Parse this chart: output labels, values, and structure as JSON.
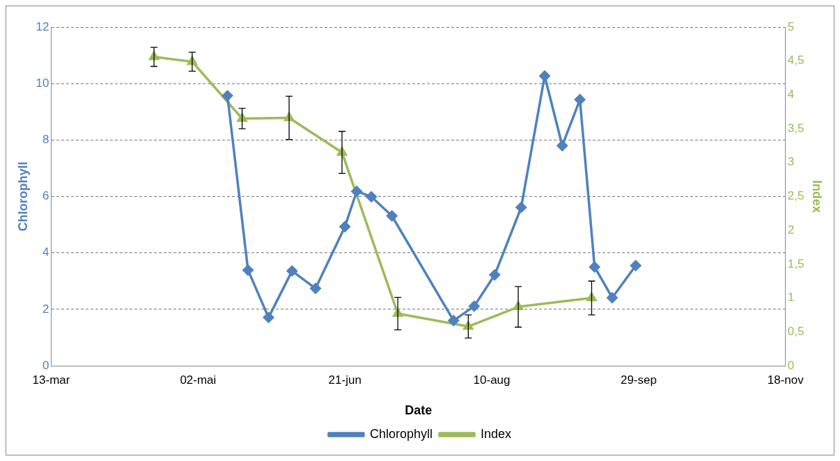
{
  "chart_data": {
    "type": "line",
    "xlabel": "Date",
    "ylabel": "Chlorophyll",
    "y2label": "Index",
    "xlim": [
      "--03-13",
      "--11-18"
    ],
    "xticks": [
      {
        "value": "--03-13",
        "label": "13-mar"
      },
      {
        "value": "--05-02",
        "label": "02-mai"
      },
      {
        "value": "--06-21",
        "label": "21-jun"
      },
      {
        "value": "--08-10",
        "label": "10-aug"
      },
      {
        "value": "--09-29",
        "label": "29-sep"
      },
      {
        "value": "--11-18",
        "label": "18-nov"
      }
    ],
    "ylim": [
      0,
      12
    ],
    "yticks": [
      0,
      2,
      4,
      6,
      8,
      10,
      12
    ],
    "y2lim": [
      0,
      5
    ],
    "y2ticks": [
      0,
      {
        "value": 0.5,
        "label": "0,5"
      },
      1,
      {
        "value": 1.5,
        "label": "1,5"
      },
      2,
      {
        "value": 2.5,
        "label": "2,5"
      },
      3,
      {
        "value": 3.5,
        "label": "3,5"
      },
      4,
      {
        "value": 4.5,
        "label": "4,5"
      },
      5
    ],
    "grid": "y",
    "legend": "bottom",
    "line_style": "solid",
    "series": [
      {
        "name": "Chlorophyll",
        "color": "#4f81bd",
        "marker": "diamond",
        "x": [
          "--05-12",
          "--05-19",
          "--05-26",
          "--06-03",
          "--06-11",
          "--06-21",
          "--06-25",
          "--06-30",
          "--07-07",
          "--07-28",
          "--08-04",
          "--08-11",
          "--08-20",
          "--08-28",
          "--09-03",
          "--09-09",
          "--09-14",
          "--09-20",
          "--09-28"
        ],
        "values": [
          9.57,
          3.39,
          1.71,
          3.36,
          2.74,
          4.93,
          6.18,
          5.99,
          5.31,
          1.6,
          2.11,
          3.22,
          5.61,
          10.27,
          7.8,
          9.43,
          3.5,
          2.41,
          3.55
        ]
      },
      {
        "name": "Index",
        "color": "#9bbb59",
        "marker": "triangle",
        "axis": "y2",
        "x": [
          "--04-17",
          "--04-30",
          "--05-17",
          "--06-02",
          "--06-20",
          "--07-09",
          "--08-02",
          "--08-19",
          "--09-13"
        ],
        "values": [
          4.56,
          4.49,
          3.65,
          3.66,
          3.15,
          0.77,
          0.58,
          0.87,
          1.0
        ],
        "errors": [
          0.14,
          0.14,
          0.15,
          0.32,
          0.31,
          0.24,
          0.17,
          0.3,
          0.25
        ]
      }
    ]
  }
}
